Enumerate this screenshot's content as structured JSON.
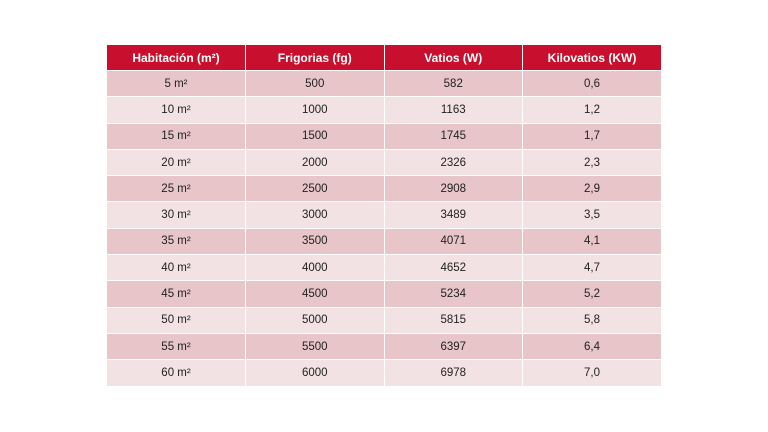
{
  "table": {
    "headers": [
      "Habitación (m²)",
      "Frigorias (fg)",
      "Vatios (W)",
      "Kilovatios (KW)"
    ],
    "rows": [
      [
        "5 m²",
        "500",
        "582",
        "0,6"
      ],
      [
        "10 m²",
        "1000",
        "1163",
        "1,2"
      ],
      [
        "15 m²",
        "1500",
        "1745",
        "1,7"
      ],
      [
        "20 m²",
        "2000",
        "2326",
        "2,3"
      ],
      [
        "25 m²",
        "2500",
        "2908",
        "2,9"
      ],
      [
        "30 m²",
        "3000",
        "3489",
        "3,5"
      ],
      [
        "35 m²",
        "3500",
        "4071",
        "4,1"
      ],
      [
        "40 m²",
        "4000",
        "4652",
        "4,7"
      ],
      [
        "45 m²",
        "4500",
        "5234",
        "5,2"
      ],
      [
        "50 m²",
        "5000",
        "5815",
        "5,8"
      ],
      [
        "55 m²",
        "5500",
        "6397",
        "6,4"
      ],
      [
        "60 m²",
        "6000",
        "6978",
        "7,0"
      ]
    ]
  },
  "colors": {
    "header": "#c8102e",
    "row_odd": "#e8c5c8",
    "row_even": "#f3e2e3"
  }
}
